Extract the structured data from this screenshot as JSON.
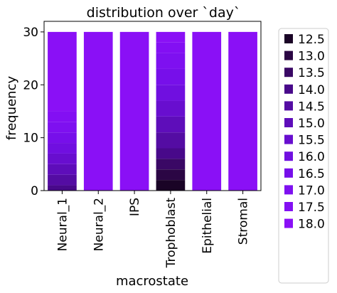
{
  "chart_data": {
    "type": "bar",
    "stacked": true,
    "title": "distribution over `day`",
    "xlabel": "macrostate",
    "ylabel": "frequency",
    "ylim": [
      0,
      32
    ],
    "yticks": [
      0,
      10,
      20,
      30
    ],
    "grid": false,
    "legend_position": "right",
    "categories": [
      "Neural_1",
      "Neural_2",
      "IPS",
      "Trophoblast",
      "Epithelial",
      "Stromal"
    ],
    "series": [
      {
        "name": "12.5",
        "color": "#1a0426",
        "values": [
          0,
          0,
          0,
          2,
          0,
          0
        ]
      },
      {
        "name": "13.0",
        "color": "#2b0644",
        "values": [
          0,
          0,
          0,
          2,
          0,
          0
        ]
      },
      {
        "name": "13.5",
        "color": "#3a0865",
        "values": [
          0,
          0,
          0,
          2,
          0,
          0
        ]
      },
      {
        "name": "14.0",
        "color": "#48098a",
        "values": [
          1,
          0,
          0,
          2,
          0,
          0
        ]
      },
      {
        "name": "14.5",
        "color": "#540ca3",
        "values": [
          2,
          0,
          0,
          3,
          0,
          0
        ]
      },
      {
        "name": "15.0",
        "color": "#5e0dba",
        "values": [
          2,
          0,
          0,
          3,
          0,
          0
        ]
      },
      {
        "name": "15.5",
        "color": "#680ecf",
        "values": [
          2,
          0,
          0,
          3,
          0,
          0
        ]
      },
      {
        "name": "16.0",
        "color": "#700fe0",
        "values": [
          2,
          0,
          0,
          3,
          0,
          0
        ]
      },
      {
        "name": "16.5",
        "color": "#770fea",
        "values": [
          2,
          0,
          0,
          3,
          0,
          0
        ]
      },
      {
        "name": "17.0",
        "color": "#7e10f0",
        "values": [
          2,
          0,
          0,
          3,
          0,
          0
        ]
      },
      {
        "name": "17.5",
        "color": "#830ff3",
        "values": [
          2,
          0,
          0,
          2,
          0,
          0
        ]
      },
      {
        "name": "18.0",
        "color": "#8a10f6",
        "values": [
          15,
          30,
          30,
          2,
          30,
          30
        ]
      }
    ]
  }
}
